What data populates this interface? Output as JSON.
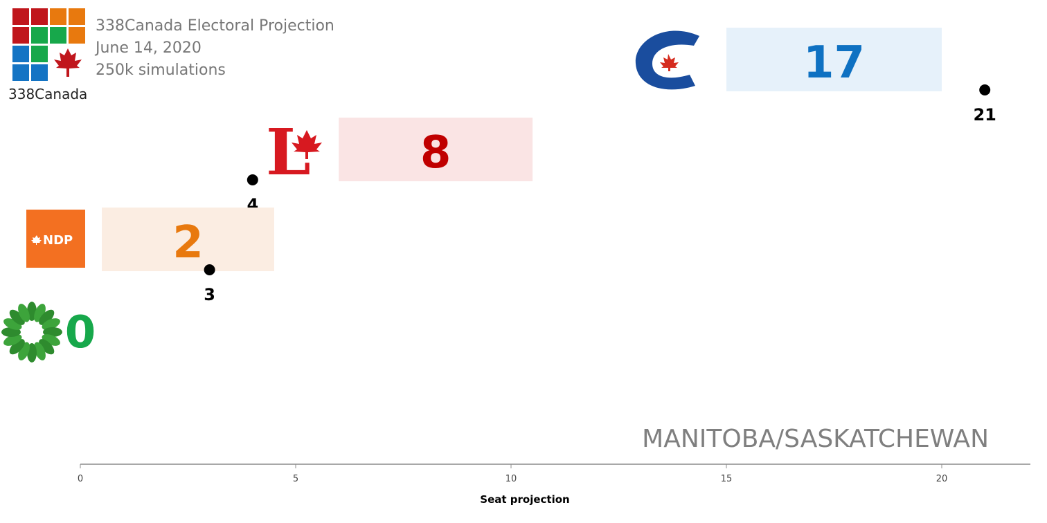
{
  "header": {
    "line1": "338Canada Electoral  Projection",
    "line2": "June 14, 2020",
    "line3": "250k simulations",
    "brand": "338Canada"
  },
  "region": "MANITOBA/SASKATCHEWAN",
  "logos": {
    "ndp_text": "NDP",
    "lpc_letter": "L"
  },
  "chart_data": {
    "type": "bar",
    "xlabel": "Seat projection",
    "xlim": [
      0,
      22
    ],
    "xticks": [
      0,
      5,
      10,
      15,
      20
    ],
    "categories": [
      "CPC",
      "LPC",
      "NDP",
      "GPC"
    ],
    "series": [
      {
        "values": [
          17,
          8,
          2,
          0
        ],
        "range_low": [
          15,
          6,
          0.5,
          null
        ],
        "range_high": [
          20,
          10.5,
          4.5,
          null
        ],
        "record_max": [
          21,
          4,
          3,
          null
        ]
      }
    ],
    "colors": {
      "CPC": {
        "main": "#0E71C2",
        "band": "#E6F1FA"
      },
      "LPC": {
        "main": "#C00000",
        "band": "#FAE4E4"
      },
      "NDP": {
        "main": "#E8790E",
        "band": "#FBEDE2"
      },
      "GPC": {
        "main": "#17A84B"
      }
    }
  },
  "brand_colors": [
    "#C0161C",
    "#C0161C",
    "#E8790E",
    "#E8790E",
    "#C0161C",
    "#17A84B",
    "#17A84B",
    "#E8790E",
    "#1474C4",
    "#1474C4",
    "#17A84B",
    "#C0161C",
    "#1474C4",
    "#1474C4"
  ]
}
